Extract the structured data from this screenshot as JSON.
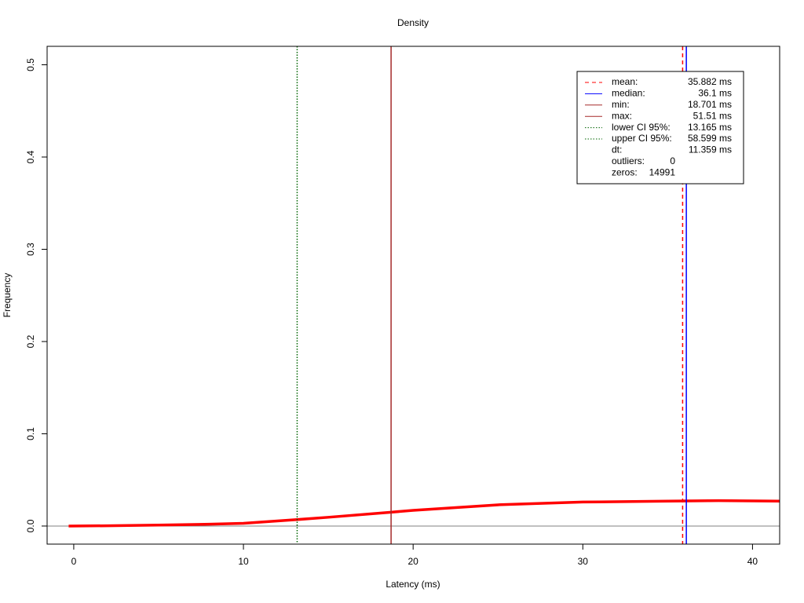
{
  "chart_data": {
    "type": "line",
    "title": "Density",
    "x_label": "Latency (ms)",
    "y_label": "Frequency",
    "xlim": [
      -1.57,
      41.6
    ],
    "ylim": [
      -0.0196,
      0.52
    ],
    "xticks": [
      0,
      10,
      20,
      30,
      40
    ],
    "yticks": [
      {
        "value": 0,
        "label": "0.0"
      },
      0.1,
      0.2,
      0.3,
      0.4,
      0.5
    ],
    "zero_line_color": "#808080",
    "series": [
      {
        "name": "Density",
        "color": "#ff0000",
        "x": [
          -0.3,
          2,
          5,
          8,
          10,
          13.165,
          15,
          18.701,
          20,
          25,
          30,
          35,
          38,
          41.6
        ],
        "values": [
          0,
          0.0003,
          0.001,
          0.002,
          0.003,
          0.007,
          0.0095,
          0.015,
          0.017,
          0.023,
          0.026,
          0.027,
          0.0275,
          0.027
        ]
      }
    ],
    "reference_lines": [
      {
        "name": "mean:",
        "value": 35.882,
        "value_label": "35.882 ms",
        "color": "#ff0000",
        "dash": "5,4"
      },
      {
        "name": "median:",
        "value": 36.1,
        "value_label": "36.1 ms",
        "color": "#0000ff",
        "dash": "none"
      },
      {
        "name": "min:",
        "value": 18.701,
        "value_label": "18.701 ms",
        "color": "#a52a2a",
        "dash": "none"
      },
      {
        "name": "max:",
        "value": 51.51,
        "value_label": "51.51 ms",
        "color": "#a52a2a",
        "dash": "none"
      },
      {
        "name": "lower CI 95%:",
        "value": 13.165,
        "value_label": "13.165 ms",
        "color": "#006400",
        "dash": "1.5,2"
      },
      {
        "name": "upper CI 95%:",
        "value": 58.599,
        "value_label": "58.599 ms",
        "color": "#006400",
        "dash": "1.5,2"
      }
    ],
    "stats": [
      {
        "name": "dt:",
        "label": "11.359 ms"
      },
      {
        "name": "outliers:",
        "label": "0"
      },
      {
        "name": "zeros:",
        "label": "14991"
      }
    ]
  }
}
